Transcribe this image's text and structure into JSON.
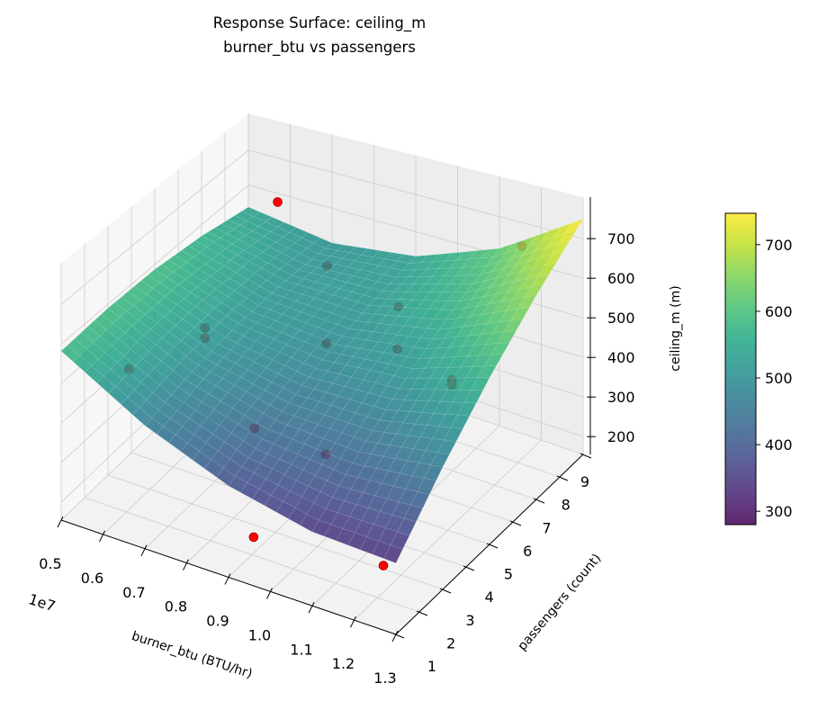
{
  "chart_data": {
    "type": "surface3d",
    "title": "Response Surface: ceiling_m",
    "subtitle": "burner_btu vs passengers",
    "xlabel": "burner_btu (BTU/hr)",
    "ylabel": "passengers (count)",
    "zlabel": "ceiling_m (m)",
    "x_offset_label": "1e7",
    "xlim": [
      0.5,
      1.3
    ],
    "ylim": [
      1,
      9
    ],
    "zlim": [
      155,
      805
    ],
    "x_ticks": [
      "0.5",
      "0.6",
      "0.7",
      "0.8",
      "0.9",
      "1.0",
      "1.1",
      "1.2",
      "1.3"
    ],
    "x_tick_values": [
      0.5,
      0.6,
      0.7,
      0.8,
      0.9,
      1.0,
      1.1,
      1.2,
      1.3
    ],
    "y_ticks": [
      "1",
      "2",
      "3",
      "4",
      "5",
      "6",
      "7",
      "8",
      "9"
    ],
    "y_tick_values": [
      1,
      2,
      3,
      4,
      5,
      6,
      7,
      8,
      9
    ],
    "z_ticks": [
      "200",
      "300",
      "400",
      "500",
      "600",
      "700"
    ],
    "z_tick_values": [
      200,
      300,
      400,
      500,
      600,
      700
    ],
    "grid": true,
    "colormap": "viridis",
    "surface": {
      "x": [
        0.5,
        0.7,
        0.9,
        1.1,
        1.3
      ],
      "y": [
        1,
        3,
        5,
        7,
        9
      ],
      "z": [
        [
          582,
          466,
          386,
          342,
          335
        ],
        [
          590,
          495,
          442,
          432,
          464
        ],
        [
          587,
          512,
          487,
          508,
          576
        ],
        [
          569,
          515,
          517,
          570,
          671
        ],
        [
          537,
          504,
          534,
          617,
          750
        ]
      ],
      "alpha": 0.85
    },
    "points": {
      "color": "#ff0000",
      "x": [
        0.57,
        0.96,
        1.27,
        0.8,
        0.97,
        0.62,
        0.62,
        0.55,
        0.91,
        1.08,
        1.21,
        1.21,
        0.85,
        1.02,
        1.21
      ],
      "y": [
        9,
        1,
        1,
        7,
        7,
        5,
        5,
        3,
        5,
        5,
        5,
        5,
        3,
        3,
        8
      ],
      "z": [
        575,
        278,
        318,
        589,
        537,
        473,
        446,
        449,
        533,
        576,
        541,
        528,
        403,
        398,
        712
      ]
    },
    "colorbar": {
      "ticks": [
        "300",
        "400",
        "500",
        "600",
        "700"
      ],
      "tick_values": [
        300,
        400,
        500,
        600,
        700
      ],
      "clim": [
        280,
        747
      ]
    }
  }
}
